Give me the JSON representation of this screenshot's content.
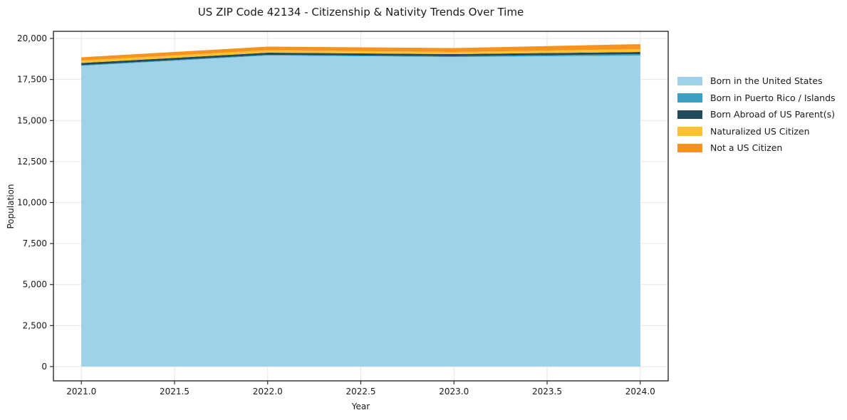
{
  "chart_data": {
    "type": "area",
    "stacked": true,
    "title": "US ZIP Code 42134 - Citizenship & Nativity Trends Over Time",
    "xlabel": "Year",
    "ylabel": "Population",
    "x": [
      2021,
      2022,
      2023,
      2024
    ],
    "series": [
      {
        "name": "Born in the United States",
        "color": "#9FD1E9",
        "values": [
          18330,
          18960,
          18870,
          18960
        ]
      },
      {
        "name": "Born in Puerto Rico / Islands",
        "color": "#3AA2C0",
        "values": [
          45,
          45,
          45,
          85
        ]
      },
      {
        "name": "Born Abroad of US Parent(s)",
        "color": "#214B5C",
        "values": [
          130,
          130,
          130,
          130
        ]
      },
      {
        "name": "Naturalized US Citizen",
        "color": "#FDC22F",
        "values": [
          150,
          150,
          130,
          175
        ]
      },
      {
        "name": "Not a US Citizen",
        "color": "#F6921E",
        "values": [
          195,
          215,
          240,
          305
        ]
      }
    ],
    "totals": [
      18850,
      19500,
      19415,
      19655
    ],
    "xlim": [
      2020.85,
      2024.15
    ],
    "ylim": [
      -870,
      20435
    ],
    "xticks": {
      "values": [
        2021.0,
        2021.5,
        2022.0,
        2022.5,
        2023.0,
        2023.5,
        2024.0
      ],
      "labels": [
        "2021.0",
        "2021.5",
        "2022.0",
        "2022.5",
        "2023.0",
        "2023.5",
        "2024.0"
      ]
    },
    "yticks": {
      "values": [
        0,
        2500,
        5000,
        7500,
        10000,
        12500,
        15000,
        17500,
        20000
      ],
      "labels": [
        "0",
        "2,500",
        "5,000",
        "7,500",
        "10,000",
        "12,500",
        "15,000",
        "17,500",
        "20,000"
      ]
    },
    "grid": true,
    "legend_position": "right-outside"
  },
  "styles": {
    "background": "#ffffff",
    "grid_color": "#e6e6e6",
    "spine_color": "#1a1a1a",
    "text_color": "#1a1a1a"
  }
}
